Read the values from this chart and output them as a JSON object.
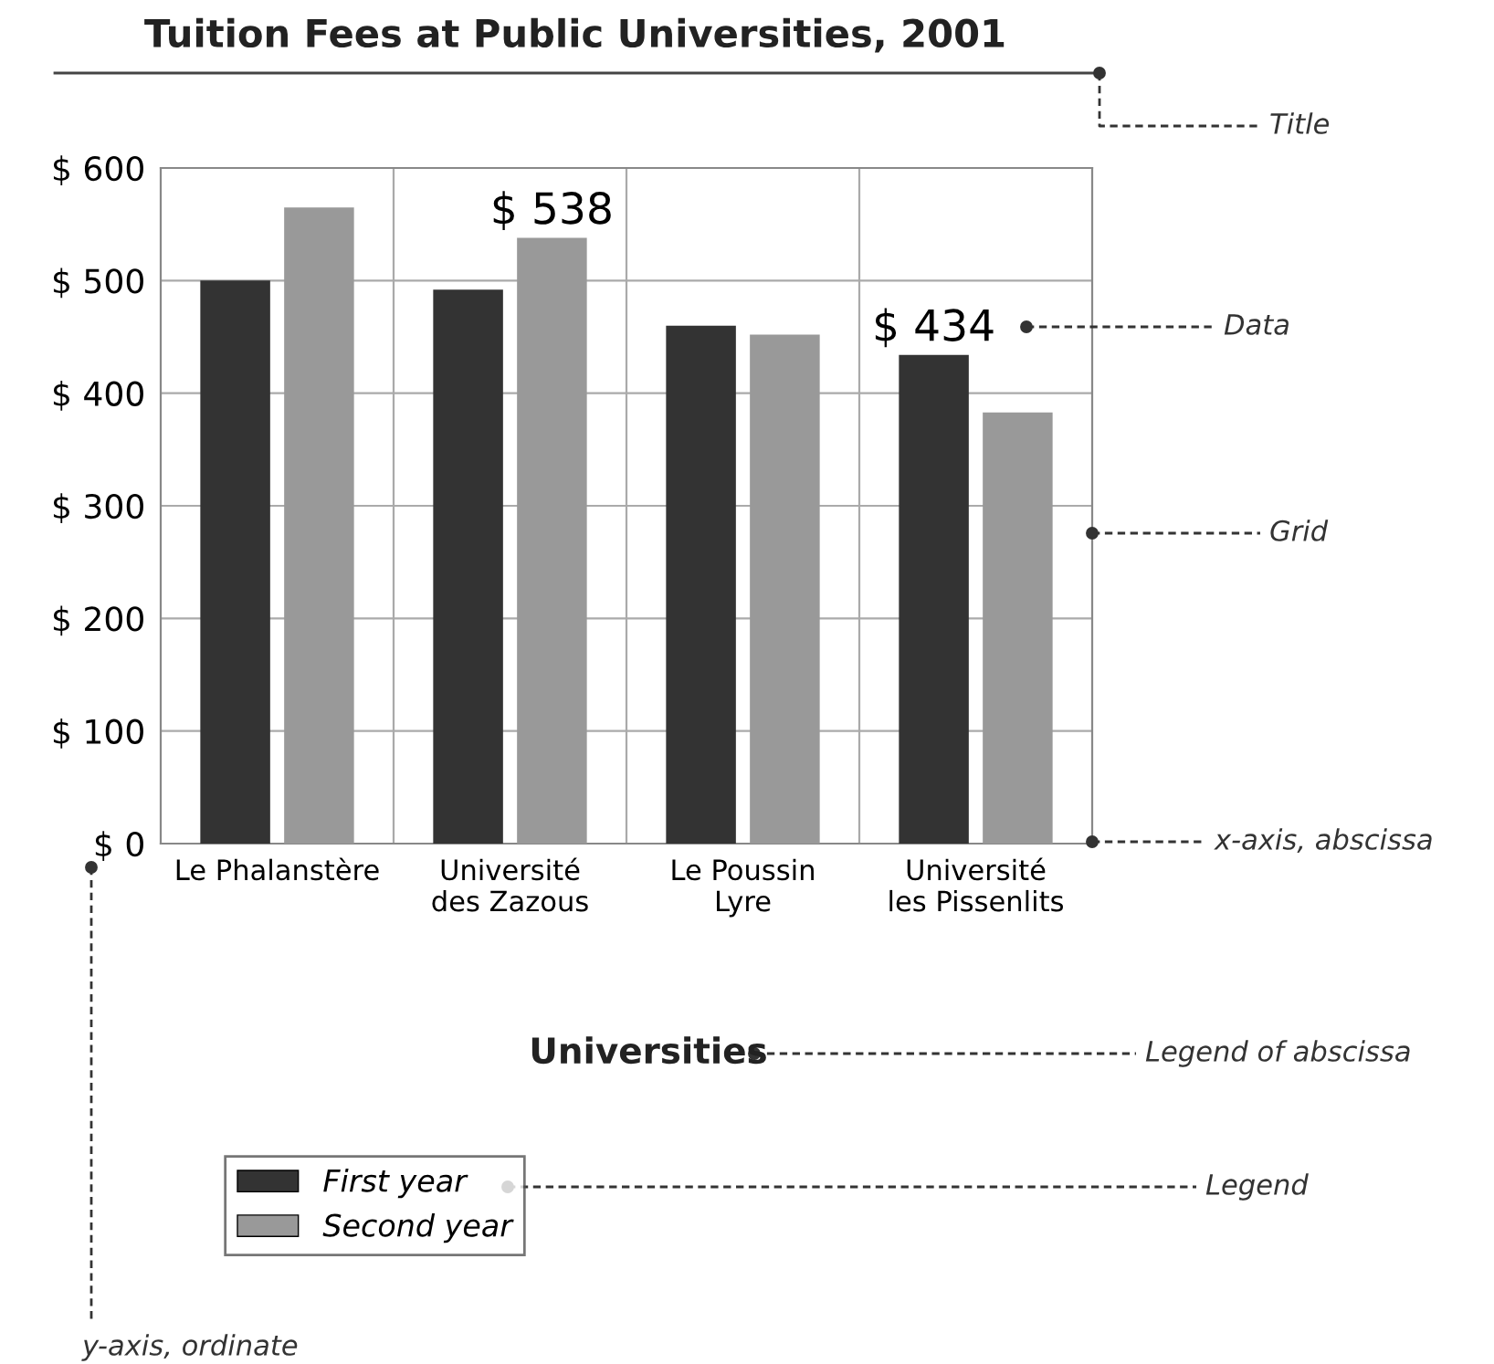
{
  "chart_data": {
    "type": "bar",
    "title": "Tuition Fees at Public Universities, 2001",
    "xlabel": "Universities",
    "categories": [
      "Le Phalanstère",
      "Université\ndes Zazous",
      "Le Poussin\nLyre",
      "Université\nles Pissenlits"
    ],
    "series": [
      {
        "name": "First year",
        "color": "#333333",
        "values": [
          500,
          492,
          460,
          434
        ],
        "value_labels": [
          null,
          null,
          null,
          "$ 434"
        ]
      },
      {
        "name": "Second year",
        "color": "#999999",
        "values": [
          565,
          538,
          452,
          383
        ],
        "value_labels": [
          null,
          "$ 538",
          null,
          null
        ]
      }
    ],
    "ylim": [
      0,
      600
    ],
    "yticks": [
      {
        "value": 0,
        "label": "$ 0"
      },
      {
        "value": 100,
        "label": "$ 100"
      },
      {
        "value": 200,
        "label": "$ 200"
      },
      {
        "value": 300,
        "label": "$ 300"
      },
      {
        "value": 400,
        "label": "$ 400"
      },
      {
        "value": 500,
        "label": "$ 500"
      },
      {
        "value": 600,
        "label": "$ 600"
      }
    ],
    "grid": true,
    "legend": "bottom left",
    "annotations": [
      "Title",
      "Data",
      "Grid",
      "x-axis, abscissa",
      "Legend of abscissa",
      "Legend",
      "y-axis, ordinate"
    ]
  }
}
